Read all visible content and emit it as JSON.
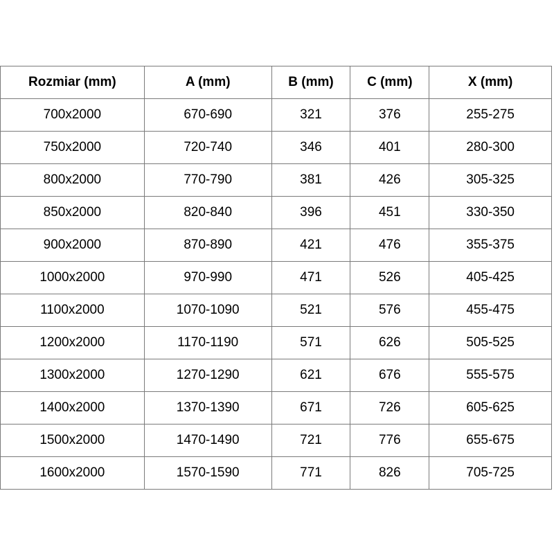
{
  "page": {
    "background_color": "#ffffff",
    "border_color": "#7a7a7a",
    "text_color": "#000000"
  },
  "table": {
    "headers": [
      "Rozmiar (mm)",
      "A (mm)",
      "B (mm)",
      "C (mm)",
      "X (mm)"
    ],
    "rows": [
      [
        "700x2000",
        "670-690",
        "321",
        "376",
        "255-275"
      ],
      [
        "750x2000",
        "720-740",
        "346",
        "401",
        "280-300"
      ],
      [
        "800x2000",
        "770-790",
        "381",
        "426",
        "305-325"
      ],
      [
        "850x2000",
        "820-840",
        "396",
        "451",
        "330-350"
      ],
      [
        "900x2000",
        "870-890",
        "421",
        "476",
        "355-375"
      ],
      [
        "1000x2000",
        "970-990",
        "471",
        "526",
        "405-425"
      ],
      [
        "1100x2000",
        "1070-1090",
        "521",
        "576",
        "455-475"
      ],
      [
        "1200x2000",
        "1170-1190",
        "571",
        "626",
        "505-525"
      ],
      [
        "1300x2000",
        "1270-1290",
        "621",
        "676",
        "555-575"
      ],
      [
        "1400x2000",
        "1370-1390",
        "671",
        "726",
        "605-625"
      ],
      [
        "1500x2000",
        "1470-1490",
        "721",
        "776",
        "655-675"
      ],
      [
        "1600x2000",
        "1570-1590",
        "771",
        "826",
        "705-725"
      ]
    ]
  }
}
